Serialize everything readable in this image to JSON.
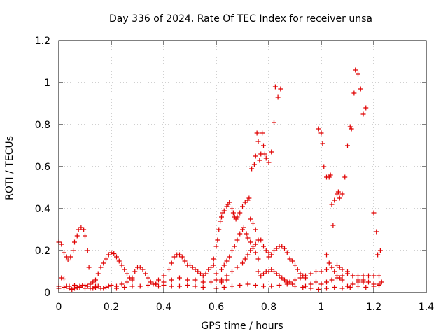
{
  "chart_data": {
    "type": "scatter",
    "title": "Day 336 of 2024, Rate Of TEC Index for receiver unsa",
    "xlabel": "GPS time / hours",
    "ylabel": "ROTI / TECUs",
    "xlim": [
      0,
      1.4
    ],
    "ylim": [
      0,
      1.2
    ],
    "xticks": [
      0,
      0.2,
      0.4,
      0.6,
      0.8,
      1,
      1.2,
      1.4
    ],
    "xtick_labels": [
      "0",
      "0.2",
      "0.4",
      "0.6",
      "0.8",
      "1",
      "1.2",
      "1.4"
    ],
    "yticks": [
      0,
      0.2,
      0.4,
      0.6,
      0.8,
      1,
      1.2
    ],
    "ytick_labels": [
      "0",
      "0.2",
      "0.4",
      "0.6",
      "0.8",
      "1",
      "1.2"
    ],
    "grid": true,
    "marker": "+",
    "color": "#e00000",
    "series": [
      {
        "name": "ROTI",
        "points": [
          [
            0.0,
            0.24
          ],
          [
            0.01,
            0.23
          ],
          [
            0.02,
            0.19
          ],
          [
            0.03,
            0.17
          ],
          [
            0.035,
            0.155
          ],
          [
            0.045,
            0.17
          ],
          [
            0.055,
            0.2
          ],
          [
            0.06,
            0.24
          ],
          [
            0.07,
            0.27
          ],
          [
            0.075,
            0.3
          ],
          [
            0.085,
            0.31
          ],
          [
            0.095,
            0.3
          ],
          [
            0.1,
            0.27
          ],
          [
            0.11,
            0.2
          ],
          [
            0.115,
            0.12
          ],
          [
            0.0,
            0.03
          ],
          [
            0.01,
            0.07
          ],
          [
            0.02,
            0.065
          ],
          [
            0.03,
            0.03
          ],
          [
            0.04,
            0.02
          ],
          [
            0.05,
            0.015
          ],
          [
            0.06,
            0.02
          ],
          [
            0.07,
            0.025
          ],
          [
            0.08,
            0.03
          ],
          [
            0.09,
            0.035
          ],
          [
            0.1,
            0.035
          ],
          [
            0.11,
            0.03
          ],
          [
            0.12,
            0.02
          ],
          [
            0.13,
            0.02
          ],
          [
            0.14,
            0.025
          ],
          [
            0.0,
            0.02
          ],
          [
            0.02,
            0.025
          ],
          [
            0.04,
            0.03
          ],
          [
            0.06,
            0.035
          ],
          [
            0.08,
            0.025
          ],
          [
            0.1,
            0.02
          ],
          [
            0.12,
            0.04
          ],
          [
            0.13,
            0.05
          ],
          [
            0.14,
            0.03
          ],
          [
            0.15,
            0.03
          ],
          [
            0.16,
            0.02
          ],
          [
            0.17,
            0.02
          ],
          [
            0.18,
            0.025
          ],
          [
            0.19,
            0.03
          ],
          [
            0.2,
            0.035
          ],
          [
            0.14,
            0.06
          ],
          [
            0.15,
            0.09
          ],
          [
            0.16,
            0.12
          ],
          [
            0.17,
            0.14
          ],
          [
            0.18,
            0.16
          ],
          [
            0.19,
            0.18
          ],
          [
            0.2,
            0.19
          ],
          [
            0.21,
            0.185
          ],
          [
            0.22,
            0.17
          ],
          [
            0.23,
            0.15
          ],
          [
            0.24,
            0.13
          ],
          [
            0.25,
            0.11
          ],
          [
            0.26,
            0.09
          ],
          [
            0.27,
            0.07
          ],
          [
            0.28,
            0.06
          ],
          [
            0.22,
            0.03
          ],
          [
            0.24,
            0.04
          ],
          [
            0.26,
            0.05
          ],
          [
            0.28,
            0.07
          ],
          [
            0.29,
            0.1
          ],
          [
            0.3,
            0.12
          ],
          [
            0.31,
            0.12
          ],
          [
            0.32,
            0.11
          ],
          [
            0.33,
            0.09
          ],
          [
            0.34,
            0.07
          ],
          [
            0.35,
            0.05
          ],
          [
            0.36,
            0.04
          ],
          [
            0.37,
            0.04
          ],
          [
            0.38,
            0.03
          ],
          [
            0.22,
            0.02
          ],
          [
            0.25,
            0.025
          ],
          [
            0.28,
            0.03
          ],
          [
            0.31,
            0.03
          ],
          [
            0.34,
            0.035
          ],
          [
            0.37,
            0.04
          ],
          [
            0.4,
            0.035
          ],
          [
            0.43,
            0.03
          ],
          [
            0.46,
            0.03
          ],
          [
            0.49,
            0.035
          ],
          [
            0.52,
            0.03
          ],
          [
            0.55,
            0.025
          ],
          [
            0.38,
            0.06
          ],
          [
            0.4,
            0.08
          ],
          [
            0.42,
            0.11
          ],
          [
            0.43,
            0.14
          ],
          [
            0.44,
            0.17
          ],
          [
            0.45,
            0.18
          ],
          [
            0.46,
            0.18
          ],
          [
            0.47,
            0.17
          ],
          [
            0.48,
            0.15
          ],
          [
            0.49,
            0.13
          ],
          [
            0.5,
            0.13
          ],
          [
            0.51,
            0.12
          ],
          [
            0.52,
            0.11
          ],
          [
            0.53,
            0.1
          ],
          [
            0.54,
            0.09
          ],
          [
            0.55,
            0.08
          ],
          [
            0.56,
            0.09
          ],
          [
            0.57,
            0.11
          ],
          [
            0.58,
            0.12
          ],
          [
            0.59,
            0.13
          ],
          [
            0.4,
            0.05
          ],
          [
            0.43,
            0.06
          ],
          [
            0.46,
            0.07
          ],
          [
            0.49,
            0.06
          ],
          [
            0.52,
            0.06
          ],
          [
            0.55,
            0.05
          ],
          [
            0.58,
            0.05
          ],
          [
            0.6,
            0.06
          ],
          [
            0.62,
            0.05
          ],
          [
            0.64,
            0.06
          ],
          [
            0.59,
            0.16
          ],
          [
            0.6,
            0.22
          ],
          [
            0.605,
            0.25
          ],
          [
            0.61,
            0.3
          ],
          [
            0.615,
            0.34
          ],
          [
            0.62,
            0.36
          ],
          [
            0.625,
            0.38
          ],
          [
            0.63,
            0.39
          ],
          [
            0.64,
            0.41
          ],
          [
            0.645,
            0.42
          ],
          [
            0.65,
            0.43
          ],
          [
            0.66,
            0.4
          ],
          [
            0.665,
            0.38
          ],
          [
            0.67,
            0.36
          ],
          [
            0.675,
            0.35
          ],
          [
            0.68,
            0.36
          ],
          [
            0.69,
            0.38
          ],
          [
            0.7,
            0.41
          ],
          [
            0.71,
            0.43
          ],
          [
            0.72,
            0.44
          ],
          [
            0.725,
            0.45
          ],
          [
            0.73,
            0.35
          ],
          [
            0.74,
            0.33
          ],
          [
            0.75,
            0.3
          ],
          [
            0.6,
            0.09
          ],
          [
            0.62,
            0.11
          ],
          [
            0.63,
            0.13
          ],
          [
            0.64,
            0.15
          ],
          [
            0.65,
            0.17
          ],
          [
            0.66,
            0.2
          ],
          [
            0.67,
            0.22
          ],
          [
            0.68,
            0.25
          ],
          [
            0.69,
            0.28
          ],
          [
            0.7,
            0.3
          ],
          [
            0.705,
            0.31
          ],
          [
            0.715,
            0.28
          ],
          [
            0.72,
            0.26
          ],
          [
            0.73,
            0.24
          ],
          [
            0.74,
            0.22
          ],
          [
            0.75,
            0.19
          ],
          [
            0.76,
            0.16
          ],
          [
            0.62,
            0.06
          ],
          [
            0.64,
            0.08
          ],
          [
            0.66,
            0.1
          ],
          [
            0.68,
            0.12
          ],
          [
            0.7,
            0.14
          ],
          [
            0.71,
            0.16
          ],
          [
            0.72,
            0.18
          ],
          [
            0.73,
            0.2
          ],
          [
            0.74,
            0.21
          ],
          [
            0.75,
            0.23
          ],
          [
            0.76,
            0.25
          ],
          [
            0.77,
            0.25
          ],
          [
            0.78,
            0.22
          ],
          [
            0.79,
            0.2
          ],
          [
            0.8,
            0.19
          ],
          [
            0.735,
            0.59
          ],
          [
            0.745,
            0.61
          ],
          [
            0.75,
            0.65
          ],
          [
            0.755,
            0.76
          ],
          [
            0.76,
            0.72
          ],
          [
            0.765,
            0.63
          ],
          [
            0.77,
            0.66
          ],
          [
            0.775,
            0.76
          ],
          [
            0.78,
            0.7
          ],
          [
            0.785,
            0.66
          ],
          [
            0.79,
            0.64
          ],
          [
            0.8,
            0.62
          ],
          [
            0.81,
            0.67
          ],
          [
            0.82,
            0.81
          ],
          [
            0.825,
            0.98
          ],
          [
            0.835,
            0.93
          ],
          [
            0.845,
            0.97
          ],
          [
            0.8,
            0.17
          ],
          [
            0.81,
            0.18
          ],
          [
            0.82,
            0.2
          ],
          [
            0.83,
            0.21
          ],
          [
            0.84,
            0.22
          ],
          [
            0.85,
            0.22
          ],
          [
            0.86,
            0.21
          ],
          [
            0.87,
            0.19
          ],
          [
            0.88,
            0.16
          ],
          [
            0.89,
            0.15
          ],
          [
            0.9,
            0.13
          ],
          [
            0.91,
            0.11
          ],
          [
            0.92,
            0.09
          ],
          [
            0.93,
            0.08
          ],
          [
            0.94,
            0.07
          ],
          [
            0.76,
            0.1
          ],
          [
            0.77,
            0.08
          ],
          [
            0.78,
            0.09
          ],
          [
            0.79,
            0.1
          ],
          [
            0.8,
            0.1
          ],
          [
            0.81,
            0.11
          ],
          [
            0.82,
            0.1
          ],
          [
            0.83,
            0.09
          ],
          [
            0.84,
            0.08
          ],
          [
            0.85,
            0.07
          ],
          [
            0.86,
            0.06
          ],
          [
            0.87,
            0.05
          ],
          [
            0.88,
            0.05
          ],
          [
            0.89,
            0.04
          ],
          [
            0.6,
            0.02
          ],
          [
            0.63,
            0.025
          ],
          [
            0.66,
            0.03
          ],
          [
            0.69,
            0.035
          ],
          [
            0.72,
            0.04
          ],
          [
            0.75,
            0.035
          ],
          [
            0.78,
            0.03
          ],
          [
            0.81,
            0.03
          ],
          [
            0.84,
            0.035
          ],
          [
            0.87,
            0.04
          ],
          [
            0.9,
            0.03
          ],
          [
            0.93,
            0.025
          ],
          [
            0.96,
            0.02
          ],
          [
            0.99,
            0.015
          ],
          [
            1.02,
            0.02
          ],
          [
            1.05,
            0.025
          ],
          [
            1.08,
            0.02
          ],
          [
            1.11,
            0.025
          ],
          [
            1.14,
            0.03
          ],
          [
            1.17,
            0.025
          ],
          [
            1.2,
            0.03
          ],
          [
            1.22,
            0.035
          ],
          [
            0.9,
            0.06
          ],
          [
            0.92,
            0.07
          ],
          [
            0.94,
            0.08
          ],
          [
            0.96,
            0.09
          ],
          [
            0.98,
            0.1
          ],
          [
            1.0,
            0.1
          ],
          [
            1.02,
            0.11
          ],
          [
            1.04,
            0.12
          ],
          [
            1.06,
            0.13
          ],
          [
            1.07,
            0.12
          ],
          [
            1.08,
            0.11
          ],
          [
            1.1,
            0.1
          ],
          [
            1.12,
            0.08
          ],
          [
            1.14,
            0.06
          ],
          [
            1.16,
            0.05
          ],
          [
            0.99,
            0.78
          ],
          [
            1.0,
            0.76
          ],
          [
            1.005,
            0.71
          ],
          [
            1.01,
            0.6
          ],
          [
            1.02,
            0.55
          ],
          [
            1.03,
            0.55
          ],
          [
            1.035,
            0.56
          ],
          [
            1.04,
            0.42
          ],
          [
            1.045,
            0.32
          ],
          [
            1.05,
            0.44
          ],
          [
            1.06,
            0.47
          ],
          [
            1.065,
            0.48
          ],
          [
            1.07,
            0.45
          ],
          [
            1.08,
            0.47
          ],
          [
            1.09,
            0.55
          ],
          [
            1.1,
            0.7
          ],
          [
            1.11,
            0.79
          ],
          [
            1.115,
            0.78
          ],
          [
            1.125,
            0.95
          ],
          [
            1.13,
            1.06
          ],
          [
            1.14,
            1.04
          ],
          [
            1.15,
            0.97
          ],
          [
            1.16,
            0.85
          ],
          [
            1.17,
            0.88
          ],
          [
            1.2,
            0.38
          ],
          [
            1.21,
            0.29
          ],
          [
            1.215,
            0.18
          ],
          [
            1.225,
            0.2
          ],
          [
            1.02,
            0.18
          ],
          [
            1.03,
            0.14
          ],
          [
            1.04,
            0.12
          ],
          [
            1.05,
            0.1
          ],
          [
            1.06,
            0.08
          ],
          [
            1.07,
            0.07
          ],
          [
            1.08,
            0.06
          ],
          [
            0.94,
            0.03
          ],
          [
            0.96,
            0.04
          ],
          [
            0.98,
            0.05
          ],
          [
            1.0,
            0.04
          ],
          [
            1.02,
            0.05
          ],
          [
            1.04,
            0.06
          ],
          [
            1.06,
            0.07
          ],
          [
            1.08,
            0.08
          ],
          [
            1.1,
            0.09
          ],
          [
            1.12,
            0.08
          ],
          [
            1.14,
            0.08
          ],
          [
            1.16,
            0.08
          ],
          [
            1.18,
            0.08
          ],
          [
            1.2,
            0.08
          ],
          [
            1.22,
            0.08
          ],
          [
            1.1,
            0.03
          ],
          [
            1.12,
            0.04
          ],
          [
            1.14,
            0.05
          ],
          [
            1.16,
            0.06
          ],
          [
            1.18,
            0.05
          ],
          [
            1.2,
            0.04
          ],
          [
            1.22,
            0.04
          ],
          [
            1.23,
            0.05
          ]
        ]
      }
    ]
  }
}
